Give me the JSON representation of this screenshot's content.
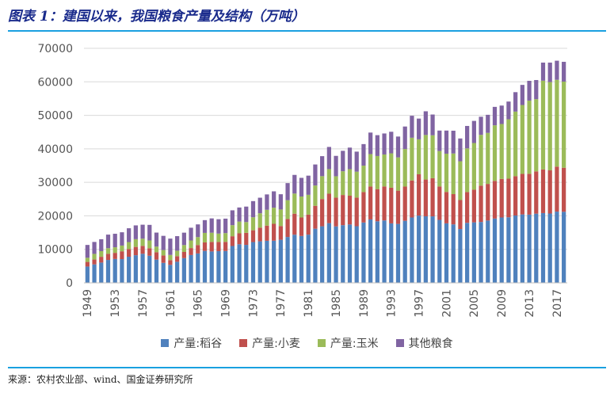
{
  "title": "图表 1：建国以来，我国粮食产量及结构（万吨）",
  "source": "来源：农村农业部、wind、国金证券研究所",
  "colors": {
    "rice": "#4f81bd",
    "wheat": "#c0504d",
    "corn": "#9bbb59",
    "other": "#8064a2",
    "rule": "#1aa0e0",
    "title": "#1a2b8c"
  },
  "chart_data": {
    "type": "bar",
    "stacked": true,
    "ylim": [
      0,
      70000
    ],
    "yticks": [
      "0",
      "10000",
      "20000",
      "30000",
      "40000",
      "50000",
      "60000",
      "70000"
    ],
    "xticks": [
      "1949",
      "1953",
      "1957",
      "1961",
      "1965",
      "1969",
      "1973",
      "1977",
      "1981",
      "1985",
      "1989",
      "1993",
      "1997",
      "2001",
      "2005",
      "2009",
      "2013",
      "2017"
    ],
    "categories": [
      "1949",
      "1950",
      "1951",
      "1952",
      "1953",
      "1954",
      "1955",
      "1956",
      "1957",
      "1958",
      "1959",
      "1960",
      "1961",
      "1962",
      "1963",
      "1964",
      "1965",
      "1966",
      "1967",
      "1968",
      "1969",
      "1970",
      "1971",
      "1972",
      "1973",
      "1974",
      "1975",
      "1976",
      "1977",
      "1978",
      "1979",
      "1980",
      "1981",
      "1982",
      "1983",
      "1984",
      "1985",
      "1986",
      "1987",
      "1988",
      "1989",
      "1990",
      "1991",
      "1992",
      "1993",
      "1994",
      "1995",
      "1996",
      "1997",
      "1998",
      "1999",
      "2000",
      "2001",
      "2002",
      "2003",
      "2004",
      "2005",
      "2006",
      "2007",
      "2008",
      "2009",
      "2010",
      "2011",
      "2012",
      "2013",
      "2014",
      "2015",
      "2016",
      "2017",
      "2018"
    ],
    "series": [
      {
        "name": "产量:稻谷",
        "values": [
          4865,
          5510,
          6056,
          6843,
          7127,
          7085,
          7803,
          8248,
          8678,
          8085,
          6937,
          5973,
          5364,
          6299,
          7377,
          8300,
          8772,
          9539,
          9369,
          9453,
          9507,
          11000,
          11521,
          11336,
          12174,
          12391,
          12556,
          12581,
          12857,
          13693,
          14375,
          13991,
          14396,
          16160,
          16887,
          17826,
          16857,
          17222,
          17426,
          16911,
          18013,
          18933,
          18381,
          18622,
          17751,
          17593,
          18523,
          19510,
          20074,
          19871,
          19849,
          18791,
          17758,
          17454,
          16066,
          17909,
          18059,
          18172,
          18603,
          19190,
          19510,
          19576,
          20100,
          20424,
          20361,
          20651,
          20823,
          20693,
          21268,
          21213
        ]
      },
      {
        "name": "产量:小麦",
        "values": [
          1381,
          1450,
          1725,
          1813,
          1828,
          2334,
          2297,
          2480,
          2364,
          2259,
          2218,
          2217,
          1425,
          1667,
          1848,
          2084,
          2522,
          2528,
          2849,
          2746,
          2729,
          2919,
          3258,
          3599,
          3523,
          4087,
          4531,
          5039,
          4108,
          5384,
          6273,
          5521,
          5964,
          6847,
          8139,
          8782,
          8581,
          9004,
          8590,
          8543,
          9081,
          9823,
          9595,
          10159,
          10639,
          9930,
          10221,
          11057,
          12329,
          10973,
          11388,
          9964,
          9387,
          9029,
          8649,
          9195,
          9745,
          10847,
          10930,
          11246,
          11512,
          11518,
          11740,
          12102,
          12193,
          12621,
          13019,
          12885,
          13433,
          13144
        ]
      },
      {
        "name": "产量:玉米",
        "values": [
          1242,
          1685,
          1684,
          1685,
          1669,
          1714,
          2072,
          2305,
          2144,
          2313,
          1665,
          1603,
          1549,
          1626,
          2058,
          2269,
          2366,
          2843,
          2745,
          2508,
          2613,
          3303,
          3515,
          3209,
          3882,
          4296,
          4722,
          4816,
          4939,
          5594,
          6004,
          6260,
          5921,
          6056,
          6821,
          7341,
          6383,
          7086,
          7924,
          7735,
          7893,
          9682,
          9877,
          9538,
          10270,
          9928,
          11199,
          12747,
          10430,
          13295,
          12809,
          10600,
          11409,
          12131,
          11583,
          13029,
          13937,
          15160,
          15230,
          16591,
          16397,
          17725,
          19278,
          20561,
          21849,
          21565,
          26499,
          26361,
          25907,
          25717
        ]
      },
      {
        "name": "其他粮食",
        "values": [
          3830,
          3565,
          3560,
          4060,
          4030,
          3965,
          4125,
          4120,
          4170,
          4650,
          4185,
          4240,
          4870,
          4350,
          3700,
          3800,
          3790,
          3810,
          4280,
          4290,
          4320,
          4430,
          4200,
          4620,
          4820,
          4640,
          4590,
          4880,
          4550,
          5100,
          5570,
          5570,
          5720,
          6270,
          5970,
          6620,
          6080,
          6100,
          6430,
          5980,
          6430,
          6420,
          6230,
          6270,
          6440,
          6220,
          6720,
          6560,
          6200,
          7070,
          6200,
          6100,
          6900,
          6800,
          6800,
          6700,
          6600,
          5400,
          5400,
          5500,
          5500,
          5300,
          5800,
          6000,
          5900,
          5700,
          5400,
          5800,
          5700,
          5900
        ]
      }
    ]
  }
}
